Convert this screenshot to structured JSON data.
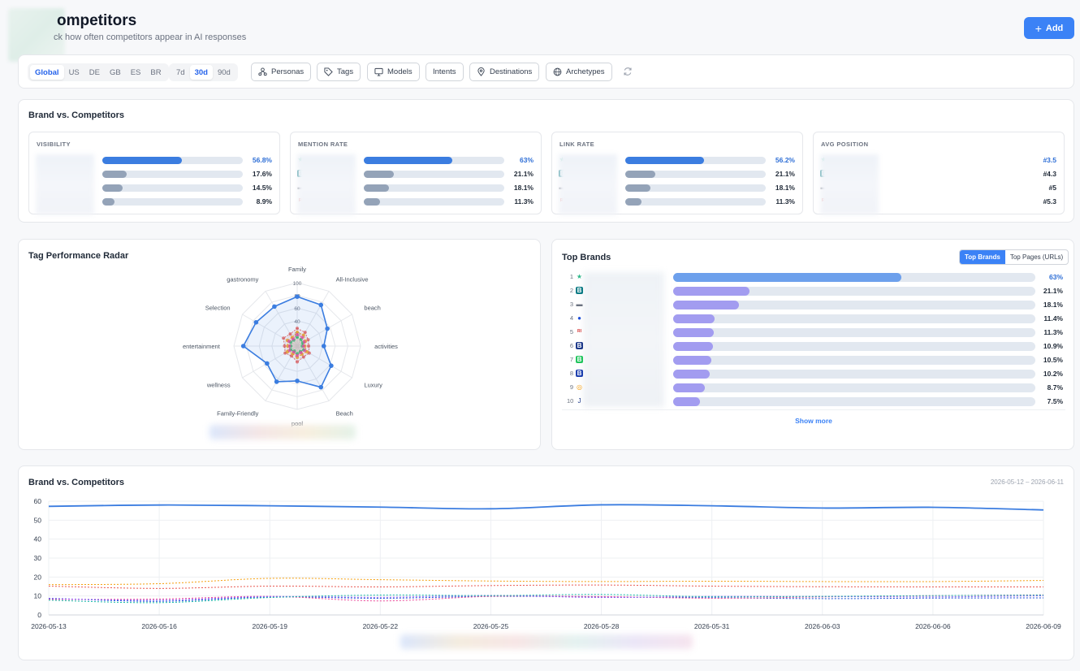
{
  "header": {
    "title": "ompetitors",
    "subtitle": "ck how often competitors appear in AI responses",
    "add_label": "Add"
  },
  "filters": {
    "regions": [
      "Global",
      "US",
      "DE",
      "GB",
      "ES",
      "BR"
    ],
    "active_region": "Global",
    "periods": [
      "7d",
      "30d",
      "90d"
    ],
    "active_period": "30d",
    "buttons": [
      {
        "label": "Personas",
        "icon": "personas-icon"
      },
      {
        "label": "Tags",
        "icon": "tag-icon"
      },
      {
        "label": "Models",
        "icon": "monitor-icon"
      },
      {
        "label": "Intents",
        "icon": ""
      },
      {
        "label": "Destinations",
        "icon": "map-pin-icon"
      },
      {
        "label": "Archetypes",
        "icon": "globe-icon"
      }
    ],
    "refresh_icon": "refresh-icon"
  },
  "brand_vs_competitors": {
    "title": "Brand vs. Competitors",
    "metrics": [
      {
        "label": "VISIBILITY",
        "rows": [
          {
            "value": "56.8%",
            "fraction": 0.568,
            "brand": true,
            "icon": "",
            "icon_color": "#e5f3ee"
          },
          {
            "value": "17.6%",
            "fraction": 0.176,
            "brand": false,
            "icon": "",
            "icon_color": "#0e7c86"
          },
          {
            "value": "14.5%",
            "fraction": 0.145,
            "brand": false,
            "icon": "",
            "icon_color": "#f1f3f6"
          },
          {
            "value": "8.9%",
            "fraction": 0.089,
            "brand": false,
            "icon": "",
            "icon_color": "#f6eef0"
          }
        ]
      },
      {
        "label": "MENTION RATE",
        "rows": [
          {
            "value": "63%",
            "fraction": 0.63,
            "brand": true,
            "icon": "★",
            "icon_color": "#2eb88a"
          },
          {
            "value": "21.1%",
            "fraction": 0.211,
            "brand": false,
            "icon": "B",
            "icon_color": "#0e7c86"
          },
          {
            "value": "18.1%",
            "fraction": 0.181,
            "brand": false,
            "icon": "▬",
            "icon_color": "#6b7280"
          },
          {
            "value": "11.3%",
            "fraction": 0.113,
            "brand": false,
            "icon": "RI",
            "icon_color": "#d32f2f"
          }
        ]
      },
      {
        "label": "LINK RATE",
        "rows": [
          {
            "value": "56.2%",
            "fraction": 0.562,
            "brand": true,
            "icon": "★",
            "icon_color": "#2eb88a"
          },
          {
            "value": "21.1%",
            "fraction": 0.211,
            "brand": false,
            "icon": "B",
            "icon_color": "#0e7c86"
          },
          {
            "value": "18.1%",
            "fraction": 0.181,
            "brand": false,
            "icon": "▬",
            "icon_color": "#6b7280"
          },
          {
            "value": "11.3%",
            "fraction": 0.113,
            "brand": false,
            "icon": "RI",
            "icon_color": "#d32f2f"
          }
        ]
      },
      {
        "label": "AVG POSITION",
        "rows": [
          {
            "value": "#3.5",
            "fraction": 0,
            "brand": true,
            "icon": "★",
            "icon_color": "#2eb88a"
          },
          {
            "value": "#4.3",
            "fraction": 0,
            "brand": false,
            "icon": "B",
            "icon_color": "#0e7c86"
          },
          {
            "value": "#5",
            "fraction": 0,
            "brand": false,
            "icon": "▬",
            "icon_color": "#6b7280"
          },
          {
            "value": "#5.3",
            "fraction": 0,
            "brand": false,
            "icon": "RI",
            "icon_color": "#d32f2f"
          }
        ]
      }
    ]
  },
  "tag_radar": {
    "title": "Tag Performance Radar",
    "axes": [
      "Family",
      "All-Inclusive",
      "beach",
      "activities",
      "Luxury",
      "Beach",
      "pool",
      "Family-Friendly",
      "wellness",
      "entertainment",
      "Selection",
      "gastronomy"
    ],
    "ticks": [
      "100",
      "80",
      "60",
      "40",
      "20"
    ],
    "brand_values": [
      78,
      75,
      55,
      42,
      62,
      75,
      55,
      65,
      55,
      85,
      75,
      72
    ],
    "competitor_series": [
      {
        "color": "#e8554e",
        "values": [
          28,
          25,
          20,
          18,
          22,
          20,
          25,
          18,
          22,
          20,
          25,
          22
        ]
      },
      {
        "color": "#f59e0b",
        "values": [
          22,
          20,
          15,
          12,
          18,
          15,
          18,
          14,
          18,
          15,
          18,
          16
        ]
      },
      {
        "color": "#22c55e",
        "values": [
          14,
          12,
          10,
          8,
          12,
          10,
          12,
          9,
          12,
          10,
          12,
          11
        ]
      },
      {
        "color": "#ec4899",
        "values": [
          18,
          16,
          13,
          10,
          14,
          12,
          15,
          11,
          14,
          12,
          15,
          13
        ]
      }
    ],
    "brand_color": "#3b7de0"
  },
  "top_brands": {
    "title": "Top Brands",
    "tabs": [
      "Top Brands",
      "Top Pages (URLs)"
    ],
    "active_tab": "Top Brands",
    "rows": [
      {
        "rank": "1",
        "value": "63%",
        "fraction": 0.63,
        "icon": "★",
        "icon_color": "#2eb88a"
      },
      {
        "rank": "2",
        "value": "21.1%",
        "fraction": 0.211,
        "icon": "B",
        "icon_color": "#0e7c86"
      },
      {
        "rank": "3",
        "value": "18.1%",
        "fraction": 0.181,
        "icon": "▬",
        "icon_color": "#6b7280"
      },
      {
        "rank": "4",
        "value": "11.4%",
        "fraction": 0.114,
        "icon": "●",
        "icon_color": "#1d4ed8"
      },
      {
        "rank": "5",
        "value": "11.3%",
        "fraction": 0.113,
        "icon": "RI",
        "icon_color": "#d32f2f"
      },
      {
        "rank": "6",
        "value": "10.9%",
        "fraction": 0.109,
        "icon": "B",
        "icon_color": "#1e3a8a"
      },
      {
        "rank": "7",
        "value": "10.5%",
        "fraction": 0.105,
        "icon": "B",
        "icon_color": "#22c55e"
      },
      {
        "rank": "8",
        "value": "10.2%",
        "fraction": 0.102,
        "icon": "B",
        "icon_color": "#1e40af"
      },
      {
        "rank": "9",
        "value": "8.7%",
        "fraction": 0.087,
        "icon": "◎",
        "icon_color": "#f59e0b"
      },
      {
        "rank": "10",
        "value": "7.5%",
        "fraction": 0.075,
        "icon": "J",
        "icon_color": "#1e3a8a"
      }
    ],
    "show_more": "Show more"
  },
  "line_chart": {
    "title": "Brand vs. Competitors",
    "date_range": "2026-05-12 – 2026-06-11"
  },
  "chart_data": {
    "type": "line",
    "x": [
      "2026-05-13",
      "2026-05-16",
      "2026-05-19",
      "2026-05-22",
      "2026-05-25",
      "2026-05-28",
      "2026-05-31",
      "2026-06-03",
      "2026-06-06",
      "2026-06-09"
    ],
    "ylim": [
      0,
      60
    ],
    "yticks": [
      0,
      10,
      20,
      30,
      40,
      50,
      60
    ],
    "grid": true,
    "series": [
      {
        "color": "#3b7de0",
        "style": "solid",
        "values": [
          57.3,
          58,
          57.6,
          56.9,
          56,
          58.1,
          57.6,
          56.4,
          56.8,
          55.4
        ]
      },
      {
        "color": "#f59e0b",
        "style": "dashed",
        "values": [
          16,
          16.5,
          19.3,
          18.6,
          17.9,
          17.6,
          17.8,
          17.6,
          17.6,
          18.2
        ]
      },
      {
        "color": "#e8554e",
        "style": "dashed",
        "values": [
          15.2,
          14,
          15.2,
          14.8,
          15.5,
          15.8,
          15.2,
          14.9,
          14.8,
          14.8
        ]
      },
      {
        "color": "#14b8a6",
        "style": "dashed",
        "values": [
          7.8,
          6.5,
          9.2,
          10.5,
          10.2,
          10.8,
          9.6,
          9.8,
          10.2,
          10.5
        ]
      },
      {
        "color": "#8b5cf6",
        "style": "dashed",
        "values": [
          8.6,
          7.8,
          9.7,
          9.3,
          10.3,
          9.2,
          9.8,
          9.7,
          9.5,
          10.1
        ]
      },
      {
        "color": "#ec4899",
        "style": "dashed",
        "values": [
          8.2,
          8.4,
          9.8,
          7.4,
          9.8,
          9.7,
          8.8,
          9.5,
          10.2,
          10.6
        ]
      },
      {
        "color": "#1d4ed8",
        "style": "dashed",
        "values": [
          8.8,
          7.2,
          9.5,
          8.8,
          9.8,
          9.5,
          9.1,
          8.6,
          8.9,
          9
        ]
      }
    ]
  }
}
